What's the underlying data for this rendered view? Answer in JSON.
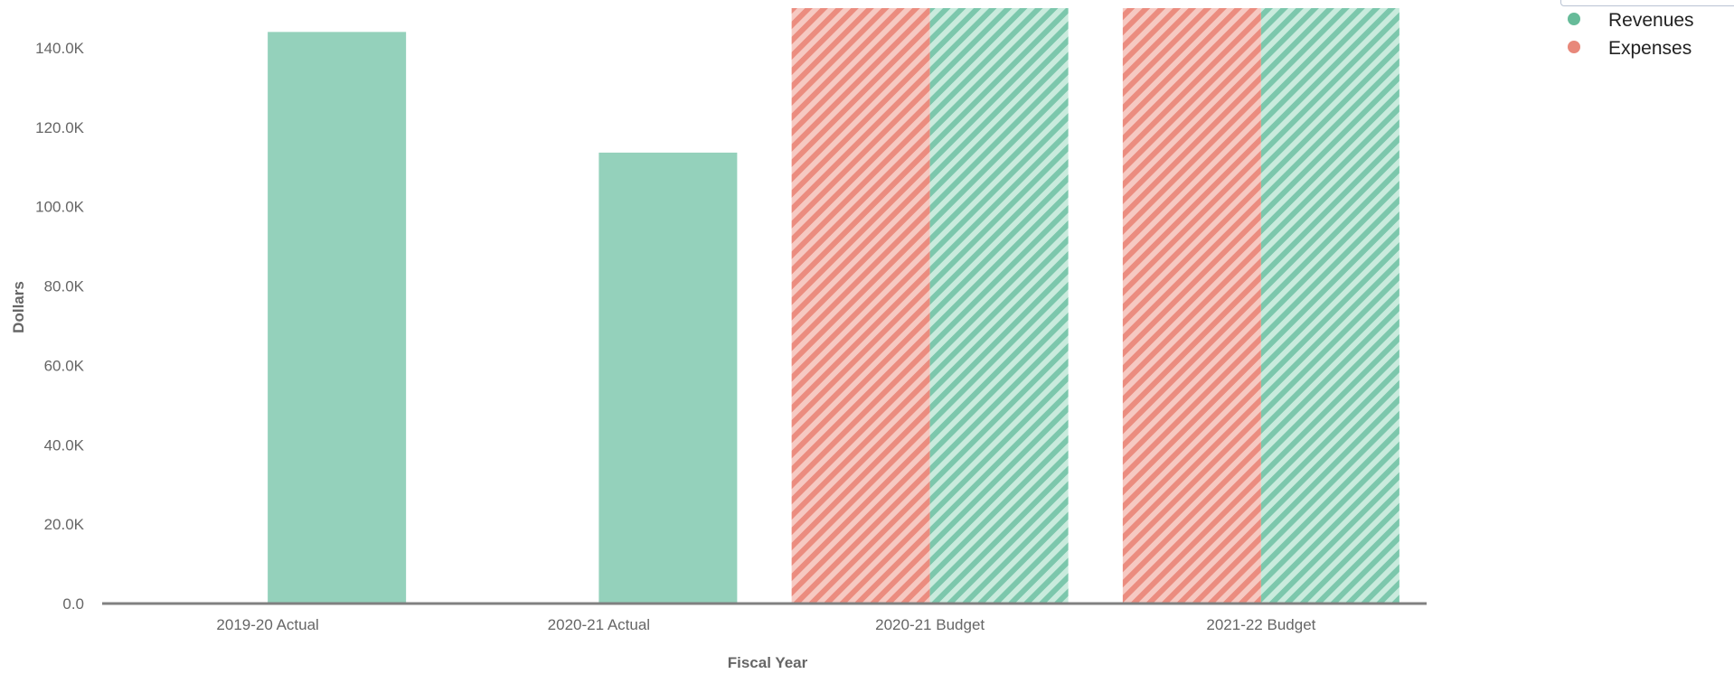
{
  "chart_data": {
    "type": "bar",
    "title": "",
    "xlabel": "Fiscal Year",
    "ylabel": "Dollars",
    "categories": [
      "2019-20 Actual",
      "2020-21 Actual",
      "2020-21 Budget",
      "2021-22 Budget"
    ],
    "ylim": [
      0,
      150000
    ],
    "yticks": [
      0,
      20000,
      40000,
      60000,
      80000,
      100000,
      120000,
      140000
    ],
    "ytick_labels": [
      "0.0",
      "20.0K",
      "40.0K",
      "60.0K",
      "80.0K",
      "100.0K",
      "120.0K",
      "140.0K"
    ],
    "series": [
      {
        "name": "Expenses",
        "color": "#eb8c7f",
        "values": [
          null,
          null,
          150000,
          150000
        ],
        "patterned": [
          false,
          false,
          true,
          true
        ]
      },
      {
        "name": "Revenues",
        "color": "#7cc7ac",
        "values": [
          144000,
          113600,
          150000,
          150000
        ],
        "patterned": [
          false,
          false,
          true,
          true
        ]
      }
    ],
    "grid": false,
    "legend": {
      "position": "top-right",
      "entries": [
        {
          "label": "Revenues",
          "color": "#66bb99"
        },
        {
          "label": "Expenses",
          "color": "#e8887a"
        }
      ]
    }
  }
}
